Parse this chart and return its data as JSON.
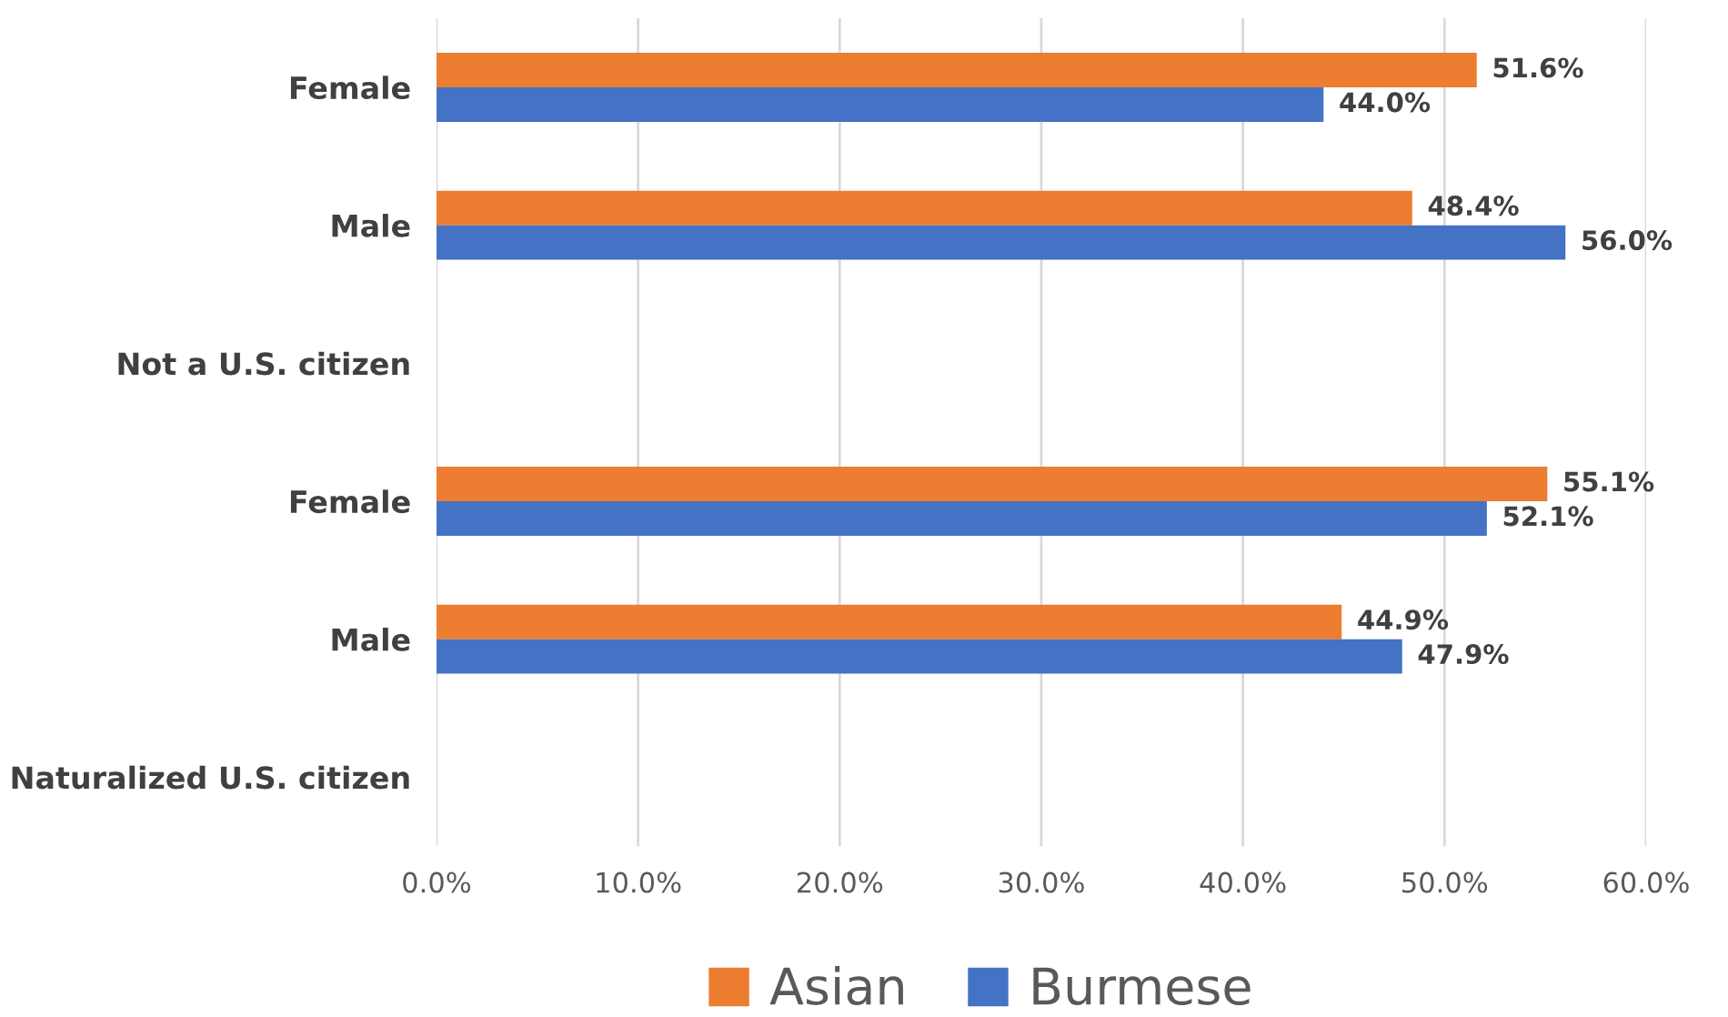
{
  "chart_data": {
    "type": "bar",
    "orientation": "horizontal",
    "categories": [
      "Female",
      "Male",
      "Not a U.S. citizen",
      "Female",
      "Male",
      "Naturalized U.S. citizen"
    ],
    "series": [
      {
        "name": "Asian",
        "color": "#ed7d31",
        "values": [
          51.6,
          48.4,
          null,
          55.1,
          44.9,
          null
        ],
        "value_labels": [
          "51.6%",
          "48.4%",
          null,
          "55.1%",
          "44.9%",
          null
        ]
      },
      {
        "name": "Burmese",
        "color": "#4472c4",
        "values": [
          44.0,
          56.0,
          null,
          52.1,
          47.9,
          null
        ],
        "value_labels": [
          "44.0%",
          "56.0%",
          null,
          "52.1%",
          "47.9%",
          null
        ]
      }
    ],
    "xlim": [
      0,
      60
    ],
    "xticks": [
      {
        "value": 0,
        "label": "0.0%"
      },
      {
        "value": 10,
        "label": "10.0%"
      },
      {
        "value": 20,
        "label": "20.0%"
      },
      {
        "value": 30,
        "label": "30.0%"
      },
      {
        "value": 40,
        "label": "40.0%"
      },
      {
        "value": 50,
        "label": "50.0%"
      },
      {
        "value": 60,
        "label": "60.0%"
      }
    ],
    "grid": "x",
    "legend": "bottom"
  }
}
